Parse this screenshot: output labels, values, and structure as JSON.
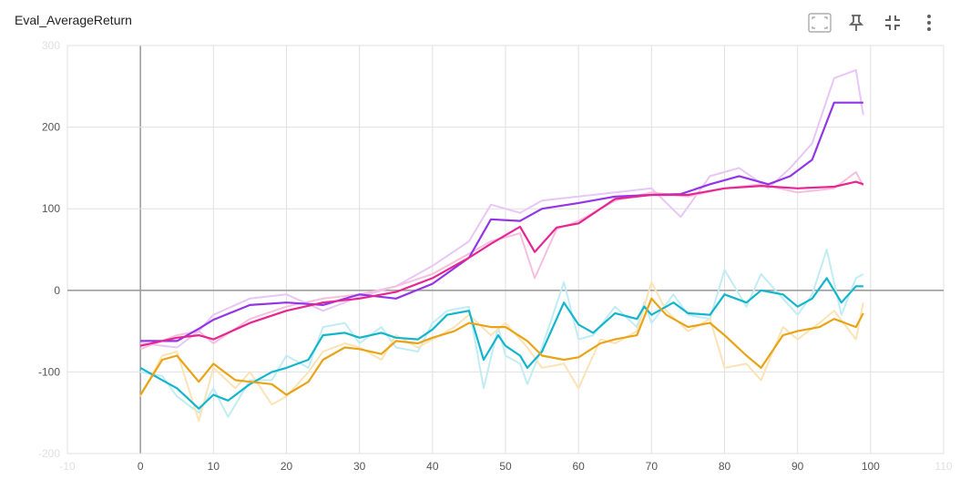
{
  "card": {
    "title": "Eval_AverageReturn"
  },
  "toolbar": {
    "buttons": [
      {
        "name": "fit-domain-button",
        "icon": "fit-to-data-icon"
      },
      {
        "name": "pin-button",
        "icon": "pin-icon"
      },
      {
        "name": "collapse-button",
        "icon": "collapse-icon"
      },
      {
        "name": "more-options-button",
        "icon": "more-vert-icon"
      }
    ]
  },
  "chart_data": {
    "type": "line",
    "title": "Eval_AverageReturn",
    "xlabel": "",
    "ylabel": "",
    "xlim": [
      -10,
      110
    ],
    "ylim": [
      -200,
      300
    ],
    "xticks": [
      -10,
      0,
      10,
      20,
      30,
      40,
      50,
      60,
      70,
      80,
      90,
      100,
      110
    ],
    "yticks": [
      -200,
      -100,
      0,
      100,
      200,
      300
    ],
    "grid": true,
    "legend": "none",
    "series": [
      {
        "color": "#9334e6",
        "raw_color": "#e8c6f5",
        "x": [
          0,
          5,
          8,
          10,
          15,
          20,
          25,
          30,
          35,
          40,
          45,
          48,
          52,
          55,
          60,
          65,
          70,
          74,
          78,
          82,
          86,
          89,
          92,
          95,
          98,
          99
        ],
        "y": [
          -62,
          -62,
          -47,
          -36,
          -18,
          -15,
          -18,
          -5,
          -10,
          8,
          40,
          87,
          85,
          100,
          107,
          115,
          117,
          118,
          130,
          140,
          130,
          140,
          160,
          230,
          230,
          230
        ],
        "raw": [
          -65,
          -70,
          -50,
          -30,
          -10,
          -5,
          -25,
          -8,
          5,
          30,
          60,
          105,
          95,
          110,
          115,
          120,
          125,
          90,
          140,
          150,
          125,
          150,
          180,
          260,
          270,
          215
        ]
      },
      {
        "color": "#e52592",
        "raw_color": "#f6bfdd",
        "x": [
          0,
          5,
          8,
          10,
          15,
          20,
          25,
          30,
          35,
          40,
          45,
          48,
          52,
          54,
          57,
          60,
          65,
          70,
          75,
          80,
          85,
          90,
          95,
          98,
          99
        ],
        "y": [
          -68,
          -58,
          -55,
          -60,
          -40,
          -25,
          -15,
          -10,
          -2,
          15,
          40,
          57,
          78,
          47,
          77,
          82,
          112,
          117,
          117,
          125,
          128,
          125,
          127,
          133,
          130
        ],
        "raw": [
          -72,
          -55,
          -50,
          -65,
          -35,
          -20,
          -10,
          -5,
          5,
          20,
          45,
          60,
          70,
          15,
          75,
          85,
          110,
          120,
          115,
          125,
          130,
          120,
          125,
          145,
          128
        ]
      },
      {
        "color": "#12b5cb",
        "raw_color": "#c1ecf3",
        "x": [
          0,
          3,
          5,
          8,
          10,
          12,
          15,
          18,
          20,
          23,
          25,
          28,
          30,
          33,
          35,
          38,
          40,
          42,
          45,
          47,
          49,
          50,
          52,
          53,
          55,
          58,
          60,
          62,
          65,
          68,
          69,
          70,
          73,
          75,
          78,
          80,
          83,
          85,
          88,
          90,
          92,
          94,
          96,
          98,
          99
        ],
        "y": [
          -95,
          -110,
          -120,
          -145,
          -128,
          -135,
          -115,
          -100,
          -95,
          -85,
          -55,
          -52,
          -58,
          -52,
          -58,
          -60,
          -48,
          -30,
          -25,
          -85,
          -55,
          -68,
          -80,
          -95,
          -75,
          -15,
          -42,
          -52,
          -28,
          -35,
          -20,
          -30,
          -15,
          -28,
          -30,
          -5,
          -15,
          0,
          -5,
          -20,
          -10,
          15,
          -15,
          5,
          5
        ],
        "raw": [
          -100,
          -105,
          -130,
          -150,
          -120,
          -155,
          -110,
          -110,
          -80,
          -95,
          -45,
          -40,
          -65,
          -45,
          -70,
          -75,
          -40,
          -25,
          -20,
          -120,
          -45,
          -80,
          -90,
          -115,
          -70,
          10,
          -60,
          -55,
          -20,
          -45,
          -15,
          -40,
          -5,
          -30,
          -35,
          25,
          -20,
          20,
          -10,
          -30,
          -5,
          50,
          -30,
          15,
          20
        ]
      },
      {
        "color": "#e8a317",
        "raw_color": "#fbe3b5",
        "x": [
          0,
          3,
          5,
          8,
          10,
          13,
          15,
          18,
          20,
          23,
          25,
          28,
          30,
          33,
          35,
          38,
          40,
          43,
          45,
          48,
          50,
          53,
          55,
          58,
          60,
          63,
          65,
          68,
          70,
          72,
          75,
          78,
          80,
          83,
          85,
          88,
          90,
          93,
          95,
          98,
          99
        ],
        "y": [
          -128,
          -85,
          -80,
          -112,
          -90,
          -110,
          -112,
          -115,
          -128,
          -112,
          -85,
          -70,
          -72,
          -78,
          -62,
          -65,
          -58,
          -50,
          -40,
          -45,
          -45,
          -62,
          -80,
          -85,
          -82,
          -65,
          -60,
          -55,
          -10,
          -30,
          -45,
          -40,
          -55,
          -80,
          -95,
          -55,
          -50,
          -45,
          -35,
          -45,
          -28
        ],
        "raw": [
          -130,
          -80,
          -75,
          -160,
          -95,
          -120,
          -100,
          -140,
          -130,
          -100,
          -75,
          -65,
          -70,
          -85,
          -55,
          -70,
          -60,
          -45,
          -30,
          -55,
          -40,
          -70,
          -95,
          -90,
          -120,
          -60,
          -65,
          -50,
          10,
          -25,
          -50,
          -35,
          -95,
          -90,
          -110,
          -45,
          -60,
          -40,
          -25,
          -60,
          -15
        ]
      }
    ]
  }
}
